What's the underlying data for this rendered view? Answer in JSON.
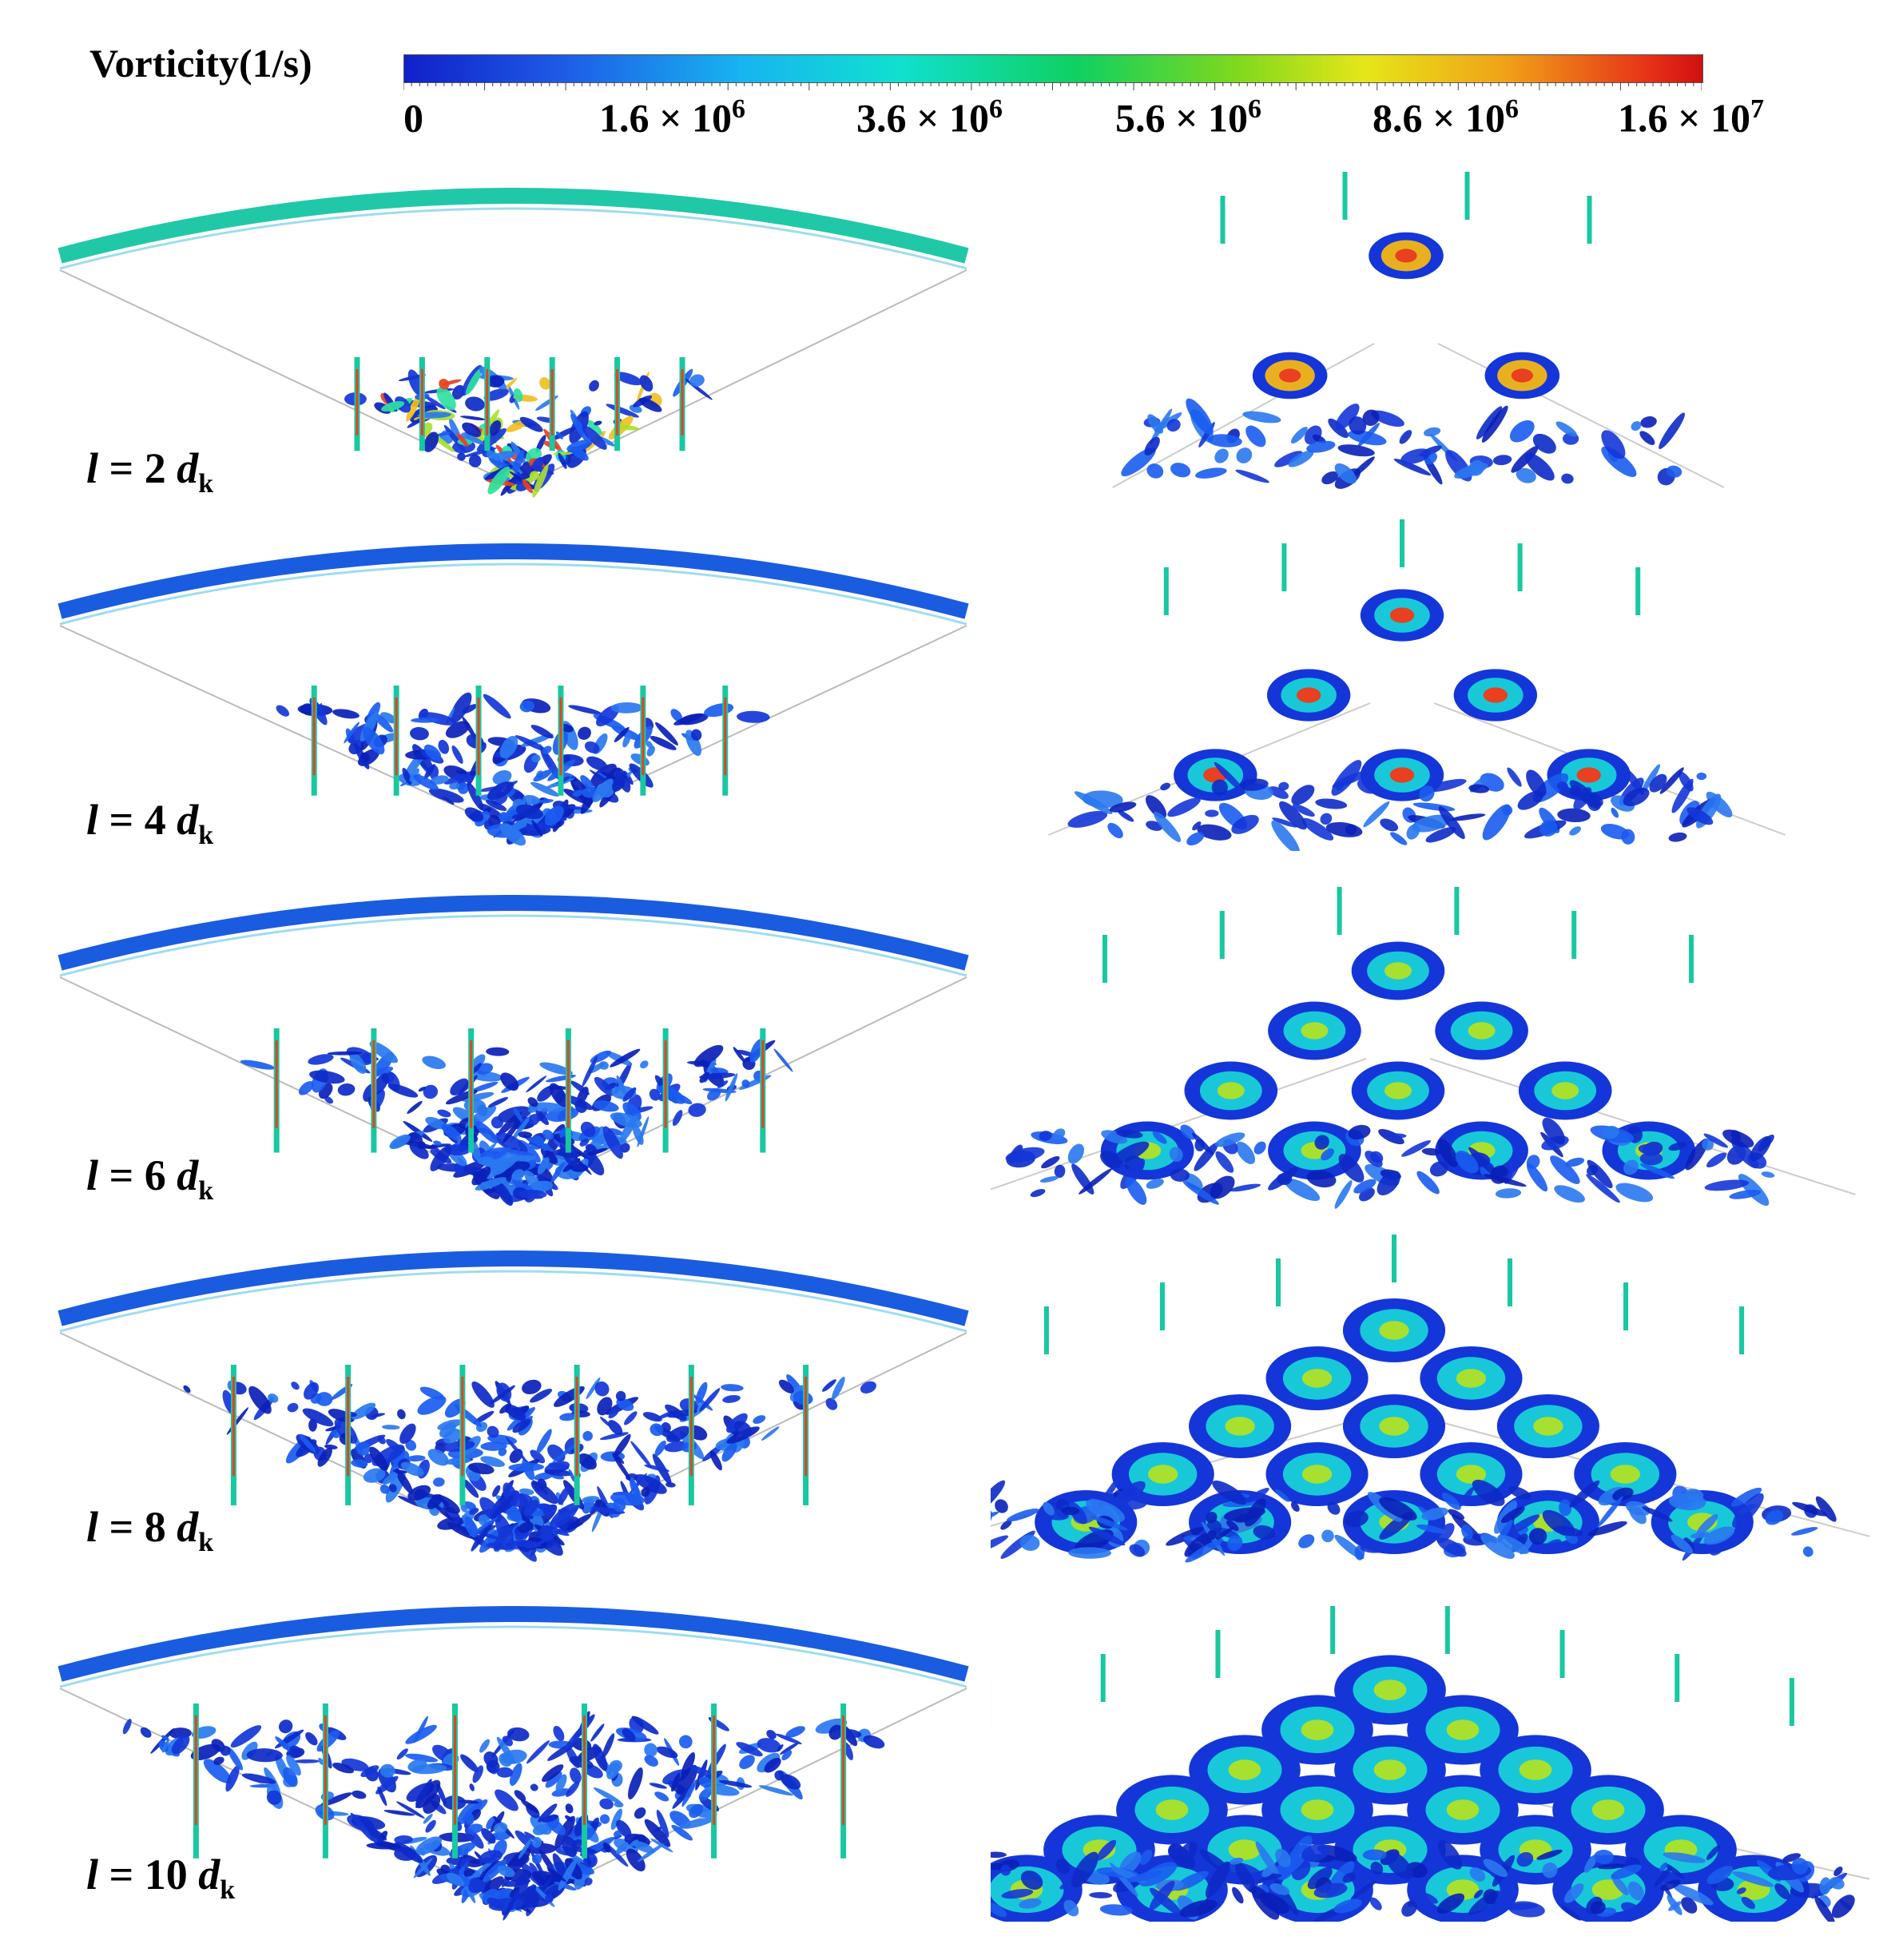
{
  "colorbar": {
    "title": "Vorticity(1/s)",
    "ticks": [
      {
        "mantissa": "0",
        "exp": ""
      },
      {
        "mantissa": "1.6 × 10",
        "exp": "6"
      },
      {
        "mantissa": "3.6 × 10",
        "exp": "6"
      },
      {
        "mantissa": "5.6 × 10",
        "exp": "6"
      },
      {
        "mantissa": "8.6 × 10",
        "exp": "6"
      },
      {
        "mantissa": "1.6 × 10",
        "exp": "7"
      }
    ],
    "colors": [
      "#1020c8",
      "#18b4f0",
      "#10d060",
      "#e6e618",
      "#e63018"
    ]
  },
  "rows": [
    {
      "var": "l",
      "eq": " = 2 ",
      "d": "d",
      "sub": "k"
    },
    {
      "var": "l",
      "eq": " = 4 ",
      "d": "d",
      "sub": "k"
    },
    {
      "var": "l",
      "eq": " = 6 ",
      "d": "d",
      "sub": "k"
    },
    {
      "var": "l",
      "eq": " = 8 ",
      "d": "d",
      "sub": "k"
    },
    {
      "var": "l",
      "eq": " = 10 ",
      "d": "d",
      "sub": "k"
    }
  ]
}
